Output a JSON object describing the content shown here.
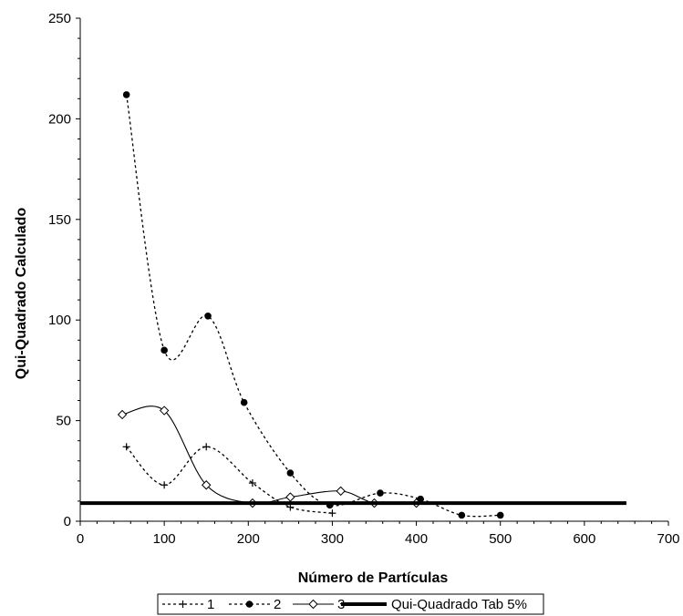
{
  "chart_data": {
    "type": "scatter",
    "xlabel": "Número de Partículas",
    "ylabel": "Qui-Quadrado Calculado",
    "xlim": [
      0,
      700
    ],
    "ylim": [
      0,
      250
    ],
    "x_ticks": [
      0,
      100,
      200,
      300,
      400,
      500,
      600,
      700
    ],
    "y_ticks": [
      0,
      50,
      100,
      150,
      200,
      250
    ],
    "grid": false,
    "legend_position": "bottom",
    "series": [
      {
        "name": "1",
        "marker": "plus",
        "line": "dotted-smooth",
        "color": "#000000",
        "x": [
          55,
          100,
          150,
          205,
          250,
          300
        ],
        "y": [
          37,
          18,
          37,
          19,
          7,
          4
        ]
      },
      {
        "name": "2",
        "marker": "filled-circle",
        "line": "dotted-smooth",
        "color": "#000000",
        "x": [
          55,
          100,
          152,
          195,
          250,
          297,
          357,
          405,
          454,
          500
        ],
        "y": [
          212,
          85,
          102,
          59,
          24,
          8,
          14,
          11,
          3,
          3
        ]
      },
      {
        "name": "3",
        "marker": "open-diamond",
        "line": "solid-smooth",
        "color": "#000000",
        "x": [
          50,
          100,
          150,
          205,
          250,
          310,
          350,
          400
        ],
        "y": [
          53,
          55,
          18,
          9,
          12,
          15,
          9,
          9
        ]
      },
      {
        "name": "Qui-Quadrado Tab 5%",
        "marker": "none",
        "line": "thick-solid",
        "color": "#000000",
        "x": [
          0,
          650
        ],
        "y": [
          9,
          9
        ]
      }
    ]
  }
}
